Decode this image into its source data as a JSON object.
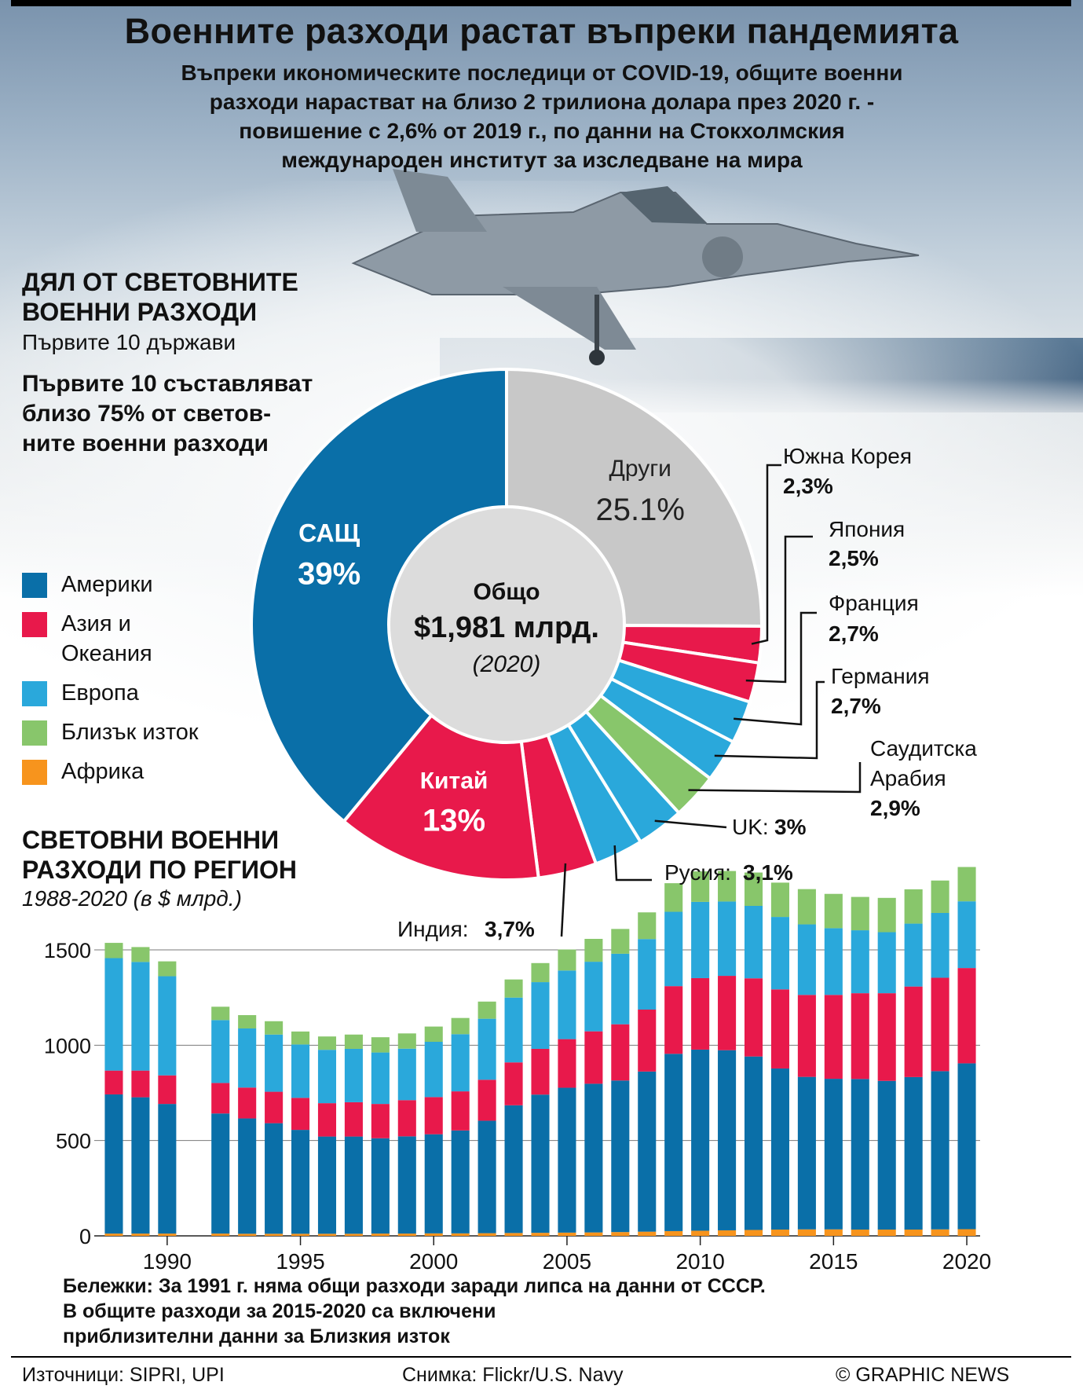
{
  "header": {
    "title": "Военните разходи растат въпреки пандемията",
    "subtitle_lines": [
      "Въпреки икономическите последици от COVID-19, общите военни",
      "разходи нарастват на близо 2 трилиона долара през 2020 г. -",
      "повишение с 2,6% от 2019 г., по данни на Стокхолмския",
      "международен институт за изследване на мира"
    ]
  },
  "share_section": {
    "title_lines": [
      "ДЯЛ ОТ СВЕТОВНИТЕ",
      "ВОЕННИ РАЗХОДИ"
    ],
    "subtitle": "Първите 10 държави",
    "note_lines": [
      "Първите 10 съставляват",
      "близо 75% от светов-",
      "ните военни разходи"
    ]
  },
  "legend": [
    {
      "label_lines": [
        "Америки"
      ],
      "color": "#0a6fa8"
    },
    {
      "label_lines": [
        "Азия и",
        "Океания"
      ],
      "color": "#e8194b"
    },
    {
      "label_lines": [
        "Европа"
      ],
      "color": "#2aa8db"
    },
    {
      "label_lines": [
        "Близък изток"
      ],
      "color": "#88c66b"
    },
    {
      "label_lines": [
        "Африка"
      ],
      "color": "#f7941d"
    }
  ],
  "region_section": {
    "title_lines": [
      "СВЕТОВНИ ВОЕННИ",
      "РАЗХОДИ ПО РЕГИОН"
    ],
    "subtitle": "1988-2020 (в $ млрд.)"
  },
  "notes": {
    "lines": [
      "Бележки: За 1991 г. няма общи разходи заради липса на данни от СССР.",
      "В общите разходи за 2015-2020 са включени",
      "приблизителни данни за Близкия изток"
    ]
  },
  "credits": {
    "sources": "Източници: SIPRI, UPI",
    "photo": "Снимка: Flickr/U.S. Navy",
    "publisher": "© GRAPHIC NEWS"
  },
  "chart_data": [
    {
      "type": "pie",
      "center_label": {
        "title": "Общо",
        "value": "$1,981 млрд.",
        "year": "(2020)"
      },
      "slices": [
        {
          "name": "Други",
          "value": 25.1,
          "label": "25.1%",
          "region": "other",
          "color": "#c8c8c8"
        },
        {
          "name": "Южна Корея",
          "value": 2.3,
          "label": "2,3%",
          "region": "asia",
          "color": "#e8194b"
        },
        {
          "name": "Япония",
          "value": 2.5,
          "label": "2,5%",
          "region": "asia",
          "color": "#e8194b"
        },
        {
          "name": "Франция",
          "value": 2.7,
          "label": "2,7%",
          "region": "europe",
          "color": "#2aa8db"
        },
        {
          "name": "Германия",
          "value": 2.7,
          "label": "2,7%",
          "region": "europe",
          "color": "#2aa8db"
        },
        {
          "name": "Саудитска Арабия",
          "value": 2.9,
          "label": "2,9%",
          "region": "mideast",
          "color": "#88c66b"
        },
        {
          "name": "UK",
          "value": 3.0,
          "label": "3%",
          "region": "europe",
          "color": "#2aa8db"
        },
        {
          "name": "Русия",
          "value": 3.1,
          "label": "3,1%",
          "region": "europe",
          "color": "#2aa8db"
        },
        {
          "name": "Индия",
          "value": 3.7,
          "label": "3,7%",
          "region": "asia",
          "color": "#e8194b"
        },
        {
          "name": "Китай",
          "value": 13,
          "label": "13%",
          "region": "asia",
          "color": "#e8194b"
        },
        {
          "name": "САЩ",
          "value": 39,
          "label": "39%",
          "region": "americas",
          "color": "#0a6fa8"
        }
      ]
    },
    {
      "type": "bar",
      "stacked": true,
      "x": [
        1988,
        1989,
        1990,
        1991,
        1992,
        1993,
        1994,
        1995,
        1996,
        1997,
        1998,
        1999,
        2000,
        2001,
        2002,
        2003,
        2004,
        2005,
        2006,
        2007,
        2008,
        2009,
        2010,
        2011,
        2012,
        2013,
        2014,
        2015,
        2016,
        2017,
        2018,
        2019,
        2020
      ],
      "x_ticks": [
        1990,
        1995,
        2000,
        2005,
        2010,
        2015,
        2020
      ],
      "y_ticks": [
        0,
        500,
        1000,
        1500
      ],
      "ylim": [
        0,
        1900
      ],
      "grid": true,
      "series": [
        {
          "name": "Африка",
          "color": "#f7941d",
          "values": [
            12,
            12,
            12,
            null,
            12,
            11,
            11,
            11,
            11,
            11,
            12,
            12,
            13,
            13,
            14,
            15,
            16,
            17,
            18,
            20,
            22,
            25,
            27,
            29,
            31,
            33,
            34,
            34,
            33,
            33,
            33,
            34,
            35
          ]
        },
        {
          "name": "Америки",
          "color": "#0a6fa8",
          "values": [
            730,
            715,
            680,
            null,
            630,
            605,
            580,
            545,
            510,
            510,
            500,
            510,
            520,
            540,
            590,
            670,
            725,
            760,
            780,
            795,
            840,
            930,
            950,
            945,
            910,
            845,
            800,
            790,
            790,
            780,
            800,
            830,
            870
          ]
        },
        {
          "name": "Азия и Океания",
          "color": "#e8194b",
          "values": [
            125,
            140,
            150,
            null,
            160,
            162,
            165,
            168,
            175,
            180,
            180,
            190,
            195,
            205,
            215,
            225,
            240,
            255,
            275,
            295,
            325,
            355,
            375,
            390,
            410,
            415,
            430,
            440,
            450,
            460,
            475,
            490,
            500
          ]
        },
        {
          "name": "Европа",
          "color": "#2aa8db",
          "values": [
            590,
            570,
            520,
            null,
            330,
            310,
            300,
            280,
            280,
            280,
            270,
            270,
            290,
            300,
            320,
            340,
            350,
            360,
            365,
            370,
            370,
            390,
            400,
            390,
            380,
            380,
            370,
            350,
            330,
            320,
            330,
            340,
            350
          ]
        },
        {
          "name": "Близък изток",
          "color": "#88c66b",
          "values": [
            80,
            78,
            78,
            null,
            70,
            70,
            70,
            68,
            70,
            75,
            80,
            80,
            80,
            85,
            90,
            95,
            100,
            110,
            120,
            130,
            140,
            150,
            160,
            160,
            175,
            180,
            185,
            180,
            175,
            180,
            180,
            170,
            180
          ]
        }
      ]
    }
  ]
}
